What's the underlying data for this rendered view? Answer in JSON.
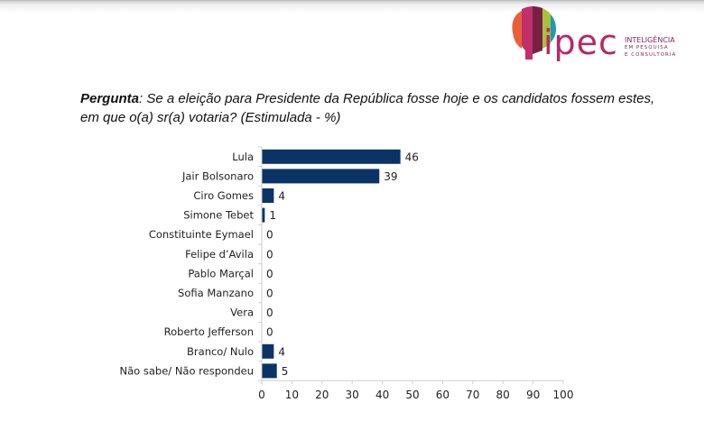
{
  "header": {
    "logo_word": "ipec",
    "logo_tagline": [
      "INTELIGÊNCIA",
      "EM PESQUISA",
      "E CONSULTORIA"
    ]
  },
  "question": {
    "prefix": "Pergunta",
    "text": ": Se a eleição para Presidente da República fosse hoje e os candidatos fossem estes,",
    "text2": "em que o(a) sr(a) votaria? (Estimulada - %)"
  },
  "chart_data": {
    "type": "bar",
    "orientation": "horizontal",
    "title": "",
    "xlabel": "",
    "ylabel": "",
    "categories": [
      "Lula",
      "Jair Bolsonaro",
      "Ciro Gomes",
      "Simone Tebet",
      "Constituinte Eymael",
      "Felipe d’Avila",
      "Pablo Marçal",
      "Sofia Manzano",
      "Vera",
      "Roberto Jefferson",
      "Branco/ Nulo",
      "Não sabe/ Não respondeu"
    ],
    "values": [
      46,
      39,
      4,
      1,
      0,
      0,
      0,
      0,
      0,
      0,
      4,
      5
    ],
    "xlim": [
      0,
      100
    ],
    "xticks": [
      0,
      10,
      20,
      30,
      40,
      50,
      60,
      70,
      80,
      90,
      100
    ],
    "grid": false,
    "legend": "none",
    "bar_color": "#0b3466"
  }
}
